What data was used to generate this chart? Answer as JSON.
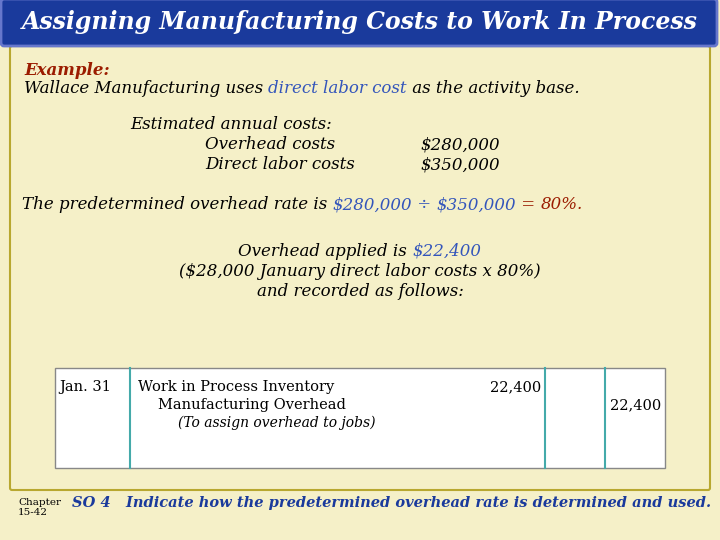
{
  "title": "Assigning Manufacturing Costs to Work In Process",
  "title_bg": "#1a3a9c",
  "title_color": "#ffffff",
  "title_fontsize": 17,
  "main_bg": "#f5f0c8",
  "example_label": "Example:",
  "example_color": "#9b1c00",
  "line1_plain": "Wallace Manufacturing uses ",
  "line1_italic": "direct labor cost",
  "line1_italic_color": "#3355bb",
  "line1_end": " as the activity base.",
  "line1_color": "#000000",
  "est_label": "Estimated annual costs:",
  "overhead_label": "Overhead costs",
  "overhead_value": "$280,000",
  "direct_label": "Direct labor costs",
  "direct_value": "$350,000",
  "predetermined_plain1": "The predetermined overhead rate is ",
  "predetermined_num1": "$280,000",
  "predetermined_div": " ÷ ",
  "predetermined_num2": "$350,000",
  "predetermined_eq": " = ",
  "predetermined_result": "80%.",
  "predetermined_color": "#000000",
  "highlight_color": "#3355bb",
  "result_color": "#9b1c00",
  "overhead_applied_plain": "Overhead applied is ",
  "overhead_applied_value": "$22,400",
  "overhead_applied_color": "#3355bb",
  "overhead_detail1": "($28,000 January direct labor costs x 80%)",
  "overhead_detail2": "and recorded as follows:",
  "journal_date": "Jan. 31",
  "journal_debit_label": "Work in Process Inventory",
  "journal_credit_label": "Manufacturing Overhead",
  "journal_note": "(To assign overhead to jobs)",
  "journal_debit_value": "22,400",
  "journal_credit_value": "22,400",
  "chapter_label": "Chapter\n15-42",
  "so_text": "SO 4   Indicate how the predetermined overhead rate is determined and used.",
  "so_color": "#1a3a9c",
  "body_fontsize": 12,
  "small_fontsize": 10.5
}
